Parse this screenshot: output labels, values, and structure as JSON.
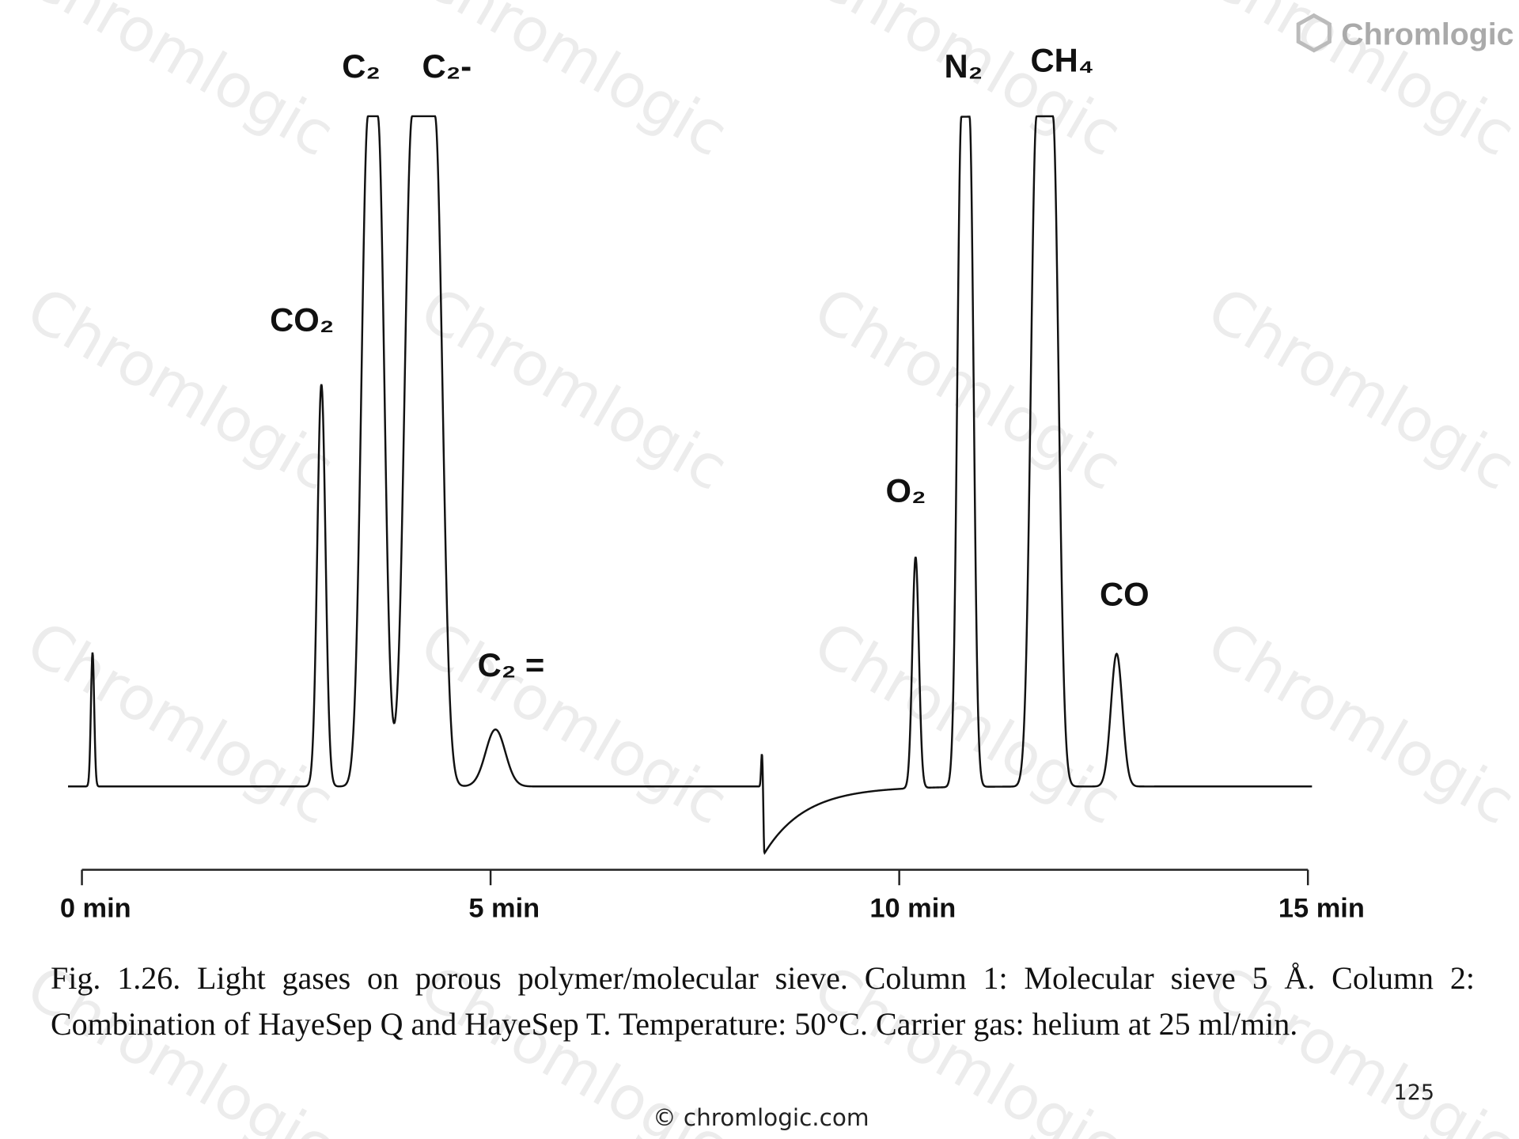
{
  "chart_data": {
    "type": "chromatogram",
    "peaks": [
      {
        "label": null,
        "time": 0.13,
        "height": 20,
        "sigma": 0.02,
        "top_width": 0
      },
      {
        "label": "CO₂",
        "time": 2.93,
        "height": 60,
        "sigma": 0.05,
        "top_width": 0
      },
      {
        "label": "C₂",
        "time": 3.56,
        "height": 100,
        "sigma": 0.08,
        "top_width": 0.12
      },
      {
        "label": "C₂-",
        "time": 4.18,
        "height": 100,
        "sigma": 0.09,
        "top_width": 0.28
      },
      {
        "label": "C₂ =",
        "time": 5.06,
        "height": 8.5,
        "sigma": 0.12,
        "top_width": 0
      },
      {
        "label": null,
        "time": 8.32,
        "height": 5,
        "sigma": 0.01,
        "top_width": 0
      },
      {
        "label": null,
        "time": 8.35,
        "height": -10,
        "sigma": 0.01,
        "top_width": 0,
        "tail": 0.5
      },
      {
        "label": "O₂",
        "time": 10.2,
        "height": 34.5,
        "sigma": 0.04,
        "top_width": 0
      },
      {
        "label": "N₂",
        "time": 10.81,
        "height": 100,
        "sigma": 0.05,
        "top_width": 0.1
      },
      {
        "label": "CH₄",
        "time": 11.78,
        "height": 100,
        "sigma": 0.07,
        "top_width": 0.2
      },
      {
        "label": "CO",
        "time": 12.66,
        "height": 19.8,
        "sigma": 0.07,
        "top_width": 0
      }
    ],
    "xlim": [
      -0.17,
      15.05
    ],
    "ylim": [
      -10,
      100
    ],
    "xticks": [
      {
        "value": 0,
        "label": "0 min"
      },
      {
        "value": 5,
        "label": "5 min"
      },
      {
        "value": 10,
        "label": "10 min"
      },
      {
        "value": 15,
        "label": "15 min"
      }
    ],
    "color": "#111111",
    "caption": "Fig. 1.26. Light gases on porous polymer/molecular sieve. Column 1: Molecular sieve 5 Å. Column 2: Combination of HayeSep Q and HayeSep T. Temperature: 50°C. Carrier gas: helium at 25 ml/min."
  },
  "watermark": "Chromlogic",
  "logo": "Chromlogic",
  "footer": "© chromlogic.com",
  "page_number": "125"
}
